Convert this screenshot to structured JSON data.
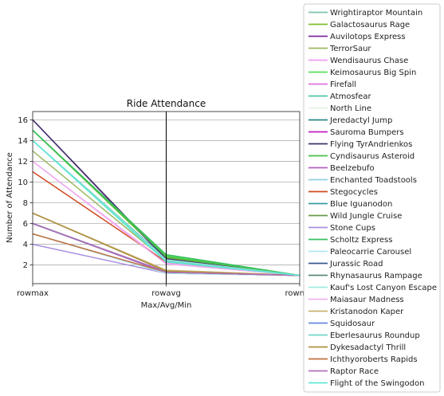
{
  "chart_data": {
    "type": "line",
    "title": "Ride Attendance",
    "xlabel": "Max/Avg/Min",
    "ylabel": "Number of Attendance",
    "categories": [
      "rowmax",
      "rowavg",
      "rowmin"
    ],
    "ylim": [
      0.2,
      16.8
    ],
    "yticks": [
      2,
      4,
      6,
      8,
      10,
      12,
      14,
      16
    ],
    "grid": "horizontal",
    "legend_placement": "right",
    "series": [
      {
        "name": "Wrightiraptor Mountain",
        "color": "#7fc4a8",
        "values": [
          6,
          1.3,
          1
        ]
      },
      {
        "name": "Galactosaurus Rage",
        "color": "#7cc02a",
        "values": [
          15,
          2.7,
          1
        ]
      },
      {
        "name": "Auvilotops Express",
        "color": "#7b2aa0",
        "values": [
          16,
          2.5,
          1
        ]
      },
      {
        "name": "TerrorSaur",
        "color": "#9cb860",
        "values": [
          13,
          2.4,
          1
        ]
      },
      {
        "name": "Wendisaurus Chase",
        "color": "#f09cf0",
        "values": [
          12,
          2.2,
          1
        ]
      },
      {
        "name": "Keimosaurus Big Spin",
        "color": "#58dc58",
        "values": [
          15,
          2.9,
          1
        ]
      },
      {
        "name": "Firefall",
        "color": "#e070e0",
        "values": [
          6,
          1.35,
          1
        ]
      },
      {
        "name": "Atmosfear",
        "color": "#50c4a8",
        "values": [
          14,
          2.6,
          1
        ]
      },
      {
        "name": "North Line",
        "color": "#e4f4e4",
        "values": [
          5,
          1.2,
          1
        ]
      },
      {
        "name": "Jeredactyl Jump",
        "color": "#2a8888",
        "values": [
          6,
          1.3,
          1
        ]
      },
      {
        "name": "Sauroma Bumpers",
        "color": "#c020c0",
        "values": [
          6,
          1.25,
          1
        ]
      },
      {
        "name": "Flying TyrAndrienkos",
        "color": "#40306a",
        "values": [
          16,
          2.6,
          1
        ]
      },
      {
        "name": "Cyndisaurus Asteroid",
        "color": "#48c048",
        "values": [
          15,
          2.8,
          1
        ]
      },
      {
        "name": "Beelzebufo",
        "color": "#b060c0",
        "values": [
          6,
          1.3,
          1
        ]
      },
      {
        "name": "Enchanted Toadstools",
        "color": "#90d0e0",
        "values": [
          7,
          1.4,
          1
        ]
      },
      {
        "name": "Stegocycles",
        "color": "#d04a20",
        "values": [
          11,
          2.3,
          1
        ]
      },
      {
        "name": "Blue Iguanodon",
        "color": "#3a9ca0",
        "values": [
          6,
          1.3,
          1
        ]
      },
      {
        "name": "Wild Jungle Cruise",
        "color": "#6a9a48",
        "values": [
          6,
          1.3,
          1
        ]
      },
      {
        "name": "Stone Cups",
        "color": "#a890e0",
        "values": [
          4,
          1.2,
          1
        ]
      },
      {
        "name": "Scholtz Express",
        "color": "#38c060",
        "values": [
          15,
          3.0,
          1
        ]
      },
      {
        "name": "Paleocarrie Carousel",
        "color": "#b0e8f0",
        "values": [
          5,
          1.2,
          1
        ]
      },
      {
        "name": "Jurassic Road",
        "color": "#3a5a90",
        "values": [
          6,
          1.3,
          1
        ]
      },
      {
        "name": "Rhynasaurus Rampage",
        "color": "#5a8a78",
        "values": [
          6,
          1.3,
          1
        ]
      },
      {
        "name": "Kauf's Lost Canyon Escape",
        "color": "#a0ece0",
        "values": [
          14,
          2.5,
          1
        ]
      },
      {
        "name": "Maiasaur Madness",
        "color": "#f0b0f0",
        "values": [
          12,
          2.1,
          1
        ]
      },
      {
        "name": "Kristanodon Kaper",
        "color": "#c8b070",
        "values": [
          7,
          1.5,
          1
        ]
      },
      {
        "name": "Squidosaur",
        "color": "#6a8ae0",
        "values": [
          6,
          1.3,
          1
        ]
      },
      {
        "name": "Eberlesaurus Roundup",
        "color": "#70d8c8",
        "values": [
          14,
          2.4,
          1
        ]
      },
      {
        "name": "Dykesadactyl Thrill",
        "color": "#b09040",
        "values": [
          7,
          1.4,
          1
        ]
      },
      {
        "name": "Ichthyoroberts Rapids",
        "color": "#c07040",
        "values": [
          5,
          1.3,
          1
        ]
      },
      {
        "name": "Raptor Race",
        "color": "#b070b8",
        "values": [
          6,
          1.3,
          1
        ]
      },
      {
        "name": "Flight of the Swingodon",
        "color": "#60e8d8",
        "values": [
          14,
          2.3,
          1
        ]
      }
    ]
  }
}
